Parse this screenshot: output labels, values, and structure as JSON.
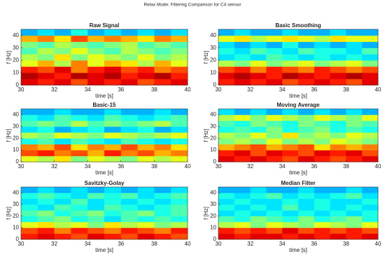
{
  "title": "Relax Mode: Filtering Comparison for C4 sensor",
  "chart_data": [
    {
      "type": "heatmap",
      "title": "Raw Signal",
      "xlabel": "time [s]",
      "ylabel": "f [Hz]",
      "colormap": "jet",
      "clim": [
        0,
        1
      ],
      "x": [
        30.5,
        31.5,
        32.5,
        33.5,
        34.5,
        35.5,
        36.5,
        37.5,
        38.5,
        39.5
      ],
      "y": [
        2.5,
        7.5,
        12.5,
        17.5,
        22.5,
        27.5,
        32.5,
        37.5,
        42.5
      ],
      "z": [
        [
          0.9,
          0.85,
          0.9,
          0.8,
          0.9,
          0.85,
          0.9,
          0.8,
          0.85,
          0.9
        ],
        [
          0.95,
          0.9,
          0.85,
          0.95,
          0.9,
          0.95,
          0.85,
          0.9,
          0.95,
          0.85
        ],
        [
          0.85,
          0.8,
          0.9,
          0.75,
          0.85,
          0.9,
          0.8,
          0.85,
          0.75,
          0.8
        ],
        [
          0.6,
          0.7,
          0.55,
          0.75,
          0.6,
          0.7,
          0.65,
          0.55,
          0.7,
          0.6
        ],
        [
          0.55,
          0.5,
          0.65,
          0.5,
          0.6,
          0.55,
          0.5,
          0.6,
          0.5,
          0.55
        ],
        [
          0.45,
          0.55,
          0.5,
          0.6,
          0.5,
          0.45,
          0.55,
          0.5,
          0.45,
          0.5
        ],
        [
          0.5,
          0.45,
          0.55,
          0.5,
          0.45,
          0.5,
          0.55,
          0.45,
          0.5,
          0.45
        ],
        [
          0.7,
          0.75,
          0.65,
          0.8,
          0.7,
          0.75,
          0.7,
          0.65,
          0.75,
          0.7
        ],
        [
          0.3,
          0.35,
          0.3,
          0.4,
          0.3,
          0.35,
          0.3,
          0.35,
          0.3,
          0.35
        ]
      ],
      "xlim": [
        30,
        40
      ],
      "ylim": [
        0,
        45
      ],
      "xticks": [
        30,
        32,
        34,
        36,
        38,
        40
      ],
      "yticks": [
        0,
        10,
        20,
        30,
        40
      ]
    },
    {
      "type": "heatmap",
      "title": "Basic Smoothing",
      "xlabel": "time [s]",
      "ylabel": "f [Hz]",
      "colormap": "jet",
      "clim": [
        0,
        1
      ],
      "x": [
        30.5,
        31.5,
        32.5,
        33.5,
        34.5,
        35.5,
        36.5,
        37.5,
        38.5,
        39.5
      ],
      "y": [
        2.5,
        7.5,
        12.5,
        17.5,
        22.5,
        27.5,
        32.5,
        37.5,
        42.5
      ],
      "z": [
        [
          0.85,
          0.9,
          0.85,
          0.9,
          0.8,
          0.85,
          0.9,
          0.85,
          0.8,
          0.9
        ],
        [
          0.9,
          0.95,
          0.9,
          0.85,
          0.95,
          0.9,
          0.85,
          0.9,
          0.95,
          0.9
        ],
        [
          0.8,
          0.85,
          0.75,
          0.85,
          0.8,
          0.75,
          0.85,
          0.8,
          0.75,
          0.8
        ],
        [
          0.55,
          0.5,
          0.6,
          0.5,
          0.55,
          0.6,
          0.5,
          0.55,
          0.6,
          0.5
        ],
        [
          0.35,
          0.4,
          0.35,
          0.45,
          0.4,
          0.35,
          0.4,
          0.35,
          0.4,
          0.35
        ],
        [
          0.4,
          0.35,
          0.45,
          0.4,
          0.35,
          0.45,
          0.4,
          0.4,
          0.35,
          0.45
        ],
        [
          0.35,
          0.3,
          0.35,
          0.3,
          0.4,
          0.3,
          0.35,
          0.3,
          0.35,
          0.3
        ],
        [
          0.6,
          0.65,
          0.55,
          0.6,
          0.65,
          0.6,
          0.55,
          0.65,
          0.6,
          0.6
        ],
        [
          0.3,
          0.35,
          0.3,
          0.3,
          0.35,
          0.3,
          0.3,
          0.35,
          0.3,
          0.3
        ]
      ],
      "xlim": [
        30,
        40
      ],
      "ylim": [
        0,
        45
      ],
      "xticks": [
        30,
        32,
        34,
        36,
        38,
        40
      ],
      "yticks": [
        0,
        10,
        20,
        30,
        40
      ]
    },
    {
      "type": "heatmap",
      "title": "Basic-15",
      "xlabel": "time [s]",
      "ylabel": "f [Hz]",
      "colormap": "jet",
      "clim": [
        0,
        1
      ],
      "x": [
        30.5,
        31.5,
        32.5,
        33.5,
        34.5,
        35.5,
        36.5,
        37.5,
        38.5,
        39.5
      ],
      "y": [
        2.5,
        7.5,
        12.5,
        17.5,
        22.5,
        27.5,
        32.5,
        37.5,
        42.5
      ],
      "z": [
        [
          0.6,
          0.55,
          0.65,
          0.5,
          0.6,
          0.55,
          0.5,
          0.6,
          0.55,
          0.6
        ],
        [
          0.8,
          0.85,
          0.75,
          0.8,
          0.7,
          0.85,
          0.75,
          0.8,
          0.7,
          0.75
        ],
        [
          0.75,
          0.7,
          0.8,
          0.65,
          0.75,
          0.7,
          0.8,
          0.7,
          0.75,
          0.65
        ],
        [
          0.4,
          0.45,
          0.35,
          0.45,
          0.4,
          0.35,
          0.45,
          0.4,
          0.35,
          0.4
        ],
        [
          0.55,
          0.5,
          0.6,
          0.55,
          0.5,
          0.6,
          0.55,
          0.5,
          0.55,
          0.6
        ],
        [
          0.35,
          0.4,
          0.3,
          0.35,
          0.4,
          0.3,
          0.35,
          0.4,
          0.3,
          0.35
        ],
        [
          0.45,
          0.5,
          0.45,
          0.55,
          0.45,
          0.5,
          0.45,
          0.5,
          0.55,
          0.45
        ],
        [
          0.4,
          0.35,
          0.45,
          0.4,
          0.35,
          0.45,
          0.4,
          0.35,
          0.4,
          0.45
        ],
        [
          0.3,
          0.3,
          0.35,
          0.3,
          0.3,
          0.35,
          0.3,
          0.3,
          0.35,
          0.3
        ]
      ],
      "xlim": [
        30,
        40
      ],
      "ylim": [
        0,
        45
      ],
      "xticks": [
        30,
        32,
        34,
        36,
        38,
        40
      ],
      "yticks": [
        0,
        10,
        20,
        30,
        40
      ]
    },
    {
      "type": "heatmap",
      "title": "Moving Average",
      "xlabel": "time [s]",
      "ylabel": "f [Hz]",
      "colormap": "jet",
      "clim": [
        0,
        1
      ],
      "x": [
        30.5,
        31.5,
        32.5,
        33.5,
        34.5,
        35.5,
        36.5,
        37.5,
        38.5,
        39.5
      ],
      "y": [
        2.5,
        7.5,
        12.5,
        17.5,
        22.5,
        27.5,
        32.5,
        37.5,
        42.5
      ],
      "z": [
        [
          0.9,
          0.85,
          0.9,
          0.85,
          0.8,
          0.9,
          0.85,
          0.8,
          0.85,
          0.9
        ],
        [
          0.85,
          0.9,
          0.8,
          0.9,
          0.85,
          0.8,
          0.9,
          0.85,
          0.9,
          0.8
        ],
        [
          0.7,
          0.75,
          0.8,
          0.7,
          0.75,
          0.8,
          0.65,
          0.75,
          0.7,
          0.75
        ],
        [
          0.5,
          0.55,
          0.5,
          0.6,
          0.5,
          0.55,
          0.5,
          0.6,
          0.55,
          0.5
        ],
        [
          0.55,
          0.5,
          0.6,
          0.5,
          0.65,
          0.5,
          0.55,
          0.5,
          0.6,
          0.55
        ],
        [
          0.4,
          0.45,
          0.4,
          0.5,
          0.4,
          0.45,
          0.5,
          0.4,
          0.45,
          0.4
        ],
        [
          0.45,
          0.4,
          0.5,
          0.45,
          0.4,
          0.5,
          0.45,
          0.4,
          0.5,
          0.45
        ],
        [
          0.55,
          0.6,
          0.5,
          0.6,
          0.55,
          0.5,
          0.6,
          0.55,
          0.5,
          0.6
        ],
        [
          0.35,
          0.3,
          0.35,
          0.3,
          0.35,
          0.3,
          0.35,
          0.3,
          0.35,
          0.3
        ]
      ],
      "xlim": [
        30,
        40
      ],
      "ylim": [
        0,
        45
      ],
      "xticks": [
        30,
        32,
        34,
        36,
        38,
        40
      ],
      "yticks": [
        0,
        10,
        20,
        30,
        40
      ]
    },
    {
      "type": "heatmap",
      "title": "Savitzky-Golay",
      "xlabel": "time [s]",
      "ylabel": "f [Hz]",
      "colormap": "jet",
      "clim": [
        0,
        1
      ],
      "x": [
        30.5,
        31.5,
        32.5,
        33.5,
        34.5,
        35.5,
        36.5,
        37.5,
        38.5,
        39.5
      ],
      "y": [
        2.5,
        7.5,
        12.5,
        17.5,
        22.5,
        27.5,
        32.5,
        37.5,
        42.5
      ],
      "z": [
        [
          0.85,
          0.9,
          0.85,
          0.8,
          0.9,
          0.85,
          0.8,
          0.9,
          0.85,
          0.8
        ],
        [
          0.8,
          0.85,
          0.75,
          0.85,
          0.8,
          0.75,
          0.85,
          0.8,
          0.75,
          0.85
        ],
        [
          0.6,
          0.65,
          0.55,
          0.6,
          0.5,
          0.65,
          0.55,
          0.6,
          0.5,
          0.55
        ],
        [
          0.4,
          0.45,
          0.5,
          0.4,
          0.45,
          0.35,
          0.45,
          0.4,
          0.45,
          0.4
        ],
        [
          0.45,
          0.5,
          0.4,
          0.45,
          0.5,
          0.4,
          0.45,
          0.5,
          0.4,
          0.45
        ],
        [
          0.4,
          0.35,
          0.45,
          0.4,
          0.35,
          0.45,
          0.4,
          0.35,
          0.4,
          0.45
        ],
        [
          0.35,
          0.4,
          0.35,
          0.45,
          0.35,
          0.4,
          0.35,
          0.4,
          0.35,
          0.4
        ],
        [
          0.4,
          0.45,
          0.4,
          0.35,
          0.45,
          0.4,
          0.45,
          0.35,
          0.4,
          0.45
        ],
        [
          0.3,
          0.35,
          0.3,
          0.35,
          0.3,
          0.35,
          0.3,
          0.35,
          0.3,
          0.35
        ]
      ],
      "xlim": [
        30,
        40
      ],
      "ylim": [
        0,
        45
      ],
      "xticks": [
        30,
        32,
        34,
        36,
        38,
        40
      ],
      "yticks": [
        0,
        10,
        20,
        30,
        40
      ]
    },
    {
      "type": "heatmap",
      "title": "Median Filter",
      "xlabel": "time [s]",
      "ylabel": "f [Hz]",
      "colormap": "jet",
      "clim": [
        0,
        1
      ],
      "x": [
        30.5,
        31.5,
        32.5,
        33.5,
        34.5,
        35.5,
        36.5,
        37.5,
        38.5,
        39.5
      ],
      "y": [
        2.5,
        7.5,
        12.5,
        17.5,
        22.5,
        27.5,
        32.5,
        37.5,
        42.5
      ],
      "z": [
        [
          0.9,
          0.85,
          0.9,
          0.9,
          0.85,
          0.9,
          0.85,
          0.9,
          0.85,
          0.9
        ],
        [
          0.85,
          0.8,
          0.85,
          0.8,
          0.9,
          0.8,
          0.85,
          0.8,
          0.85,
          0.8
        ],
        [
          0.55,
          0.6,
          0.5,
          0.6,
          0.55,
          0.5,
          0.6,
          0.55,
          0.5,
          0.6
        ],
        [
          0.45,
          0.4,
          0.5,
          0.45,
          0.4,
          0.5,
          0.4,
          0.45,
          0.5,
          0.4
        ],
        [
          0.35,
          0.4,
          0.35,
          0.4,
          0.35,
          0.4,
          0.35,
          0.4,
          0.35,
          0.4
        ],
        [
          0.4,
          0.35,
          0.4,
          0.35,
          0.45,
          0.35,
          0.4,
          0.35,
          0.4,
          0.35
        ],
        [
          0.35,
          0.4,
          0.35,
          0.35,
          0.4,
          0.35,
          0.4,
          0.35,
          0.35,
          0.4
        ],
        [
          0.4,
          0.35,
          0.4,
          0.45,
          0.35,
          0.4,
          0.35,
          0.4,
          0.45,
          0.35
        ],
        [
          0.3,
          0.3,
          0.35,
          0.3,
          0.3,
          0.35,
          0.3,
          0.3,
          0.35,
          0.3
        ]
      ],
      "xlim": [
        30,
        40
      ],
      "ylim": [
        0,
        45
      ],
      "xticks": [
        30,
        32,
        34,
        36,
        38,
        40
      ],
      "yticks": [
        0,
        10,
        20,
        30,
        40
      ]
    }
  ]
}
